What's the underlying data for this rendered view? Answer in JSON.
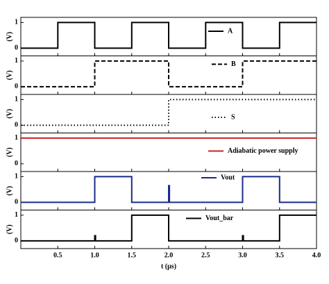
{
  "chart_data": [
    {
      "type": "line",
      "ylabel": "(V)",
      "xlim": [
        0,
        4
      ],
      "ylim": [
        -0.3,
        1.2
      ],
      "yticks": [
        0,
        1
      ],
      "x": [
        0,
        0.5,
        0.5,
        1.0,
        1.0,
        1.5,
        1.5,
        2.0,
        2.0,
        2.5,
        2.5,
        3.0,
        3.0,
        3.5,
        3.5,
        4.0
      ],
      "series": [
        {
          "name": "A",
          "color": "#000000",
          "style": "solid",
          "values": [
            0,
            0,
            1,
            1,
            0,
            0,
            1,
            1,
            0,
            0,
            1,
            1,
            0,
            0,
            1,
            1
          ]
        }
      ]
    },
    {
      "type": "line",
      "ylabel": "(V)",
      "xlim": [
        0,
        4
      ],
      "ylim": [
        -0.3,
        1.2
      ],
      "yticks": [
        0,
        1
      ],
      "x": [
        0,
        1.0,
        1.0,
        2.0,
        2.0,
        3.0,
        3.0,
        4.0
      ],
      "series": [
        {
          "name": "B",
          "color": "#000000",
          "style": "dashed",
          "values": [
            0,
            0,
            1,
            1,
            0,
            0,
            1,
            1
          ]
        }
      ]
    },
    {
      "type": "line",
      "ylabel": "(V)",
      "xlim": [
        0,
        4
      ],
      "ylim": [
        -0.3,
        1.2
      ],
      "yticks": [
        0,
        1
      ],
      "x": [
        0,
        2.0,
        2.0,
        4.0
      ],
      "series": [
        {
          "name": "S",
          "color": "#000000",
          "style": "dotted",
          "values": [
            0,
            0,
            1,
            1
          ]
        }
      ]
    },
    {
      "type": "line",
      "ylabel": "(V)",
      "xlim": [
        0,
        4
      ],
      "ylim": [
        -0.3,
        1.2
      ],
      "yticks": [
        0,
        1
      ],
      "x": [
        0,
        4.0
      ],
      "series": [
        {
          "name": "Adiabatic power supply",
          "color": "#cc2222",
          "style": "solid",
          "values": [
            1,
            1
          ]
        }
      ]
    },
    {
      "type": "line",
      "ylabel": "(V)",
      "xlim": [
        0,
        4
      ],
      "ylim": [
        -0.3,
        1.2
      ],
      "yticks": [
        0,
        1
      ],
      "x": [
        0,
        1.0,
        1.0,
        1.5,
        1.5,
        2.0,
        2.0,
        2.01,
        2.01,
        3.0,
        3.0,
        3.5,
        3.5,
        4.0
      ],
      "series": [
        {
          "name": "Vout",
          "color": "#1a2a8a",
          "style": "solid",
          "values": [
            0,
            0,
            1,
            1,
            0,
            0,
            0.65,
            0.65,
            0,
            0,
            1,
            1,
            0,
            0
          ]
        }
      ]
    },
    {
      "type": "line",
      "ylabel": "(V)",
      "xlim": [
        0,
        4
      ],
      "ylim": [
        -0.3,
        1.2
      ],
      "yticks": [
        0,
        1
      ],
      "xlabel": "t (μs)",
      "xticks": [
        0.5,
        {
          "value": 1,
          "label": "1.0"
        },
        1.5,
        {
          "value": 2,
          "label": "2.0"
        },
        2.5,
        {
          "value": 3,
          "label": "3.0"
        },
        3.5,
        {
          "value": 4,
          "label": "4.0"
        }
      ],
      "x": [
        0,
        1.0,
        1.0,
        1.01,
        1.01,
        1.5,
        1.5,
        2.0,
        2.0,
        3.0,
        3.0,
        3.01,
        3.01,
        3.5,
        3.5,
        4.0
      ],
      "series": [
        {
          "name": "Vout_bar",
          "color": "#000000",
          "style": "solid",
          "values": [
            0,
            0,
            0.2,
            0.2,
            0,
            0,
            1,
            1,
            0,
            0,
            0.2,
            0.2,
            0,
            0,
            1,
            1
          ]
        }
      ]
    }
  ]
}
